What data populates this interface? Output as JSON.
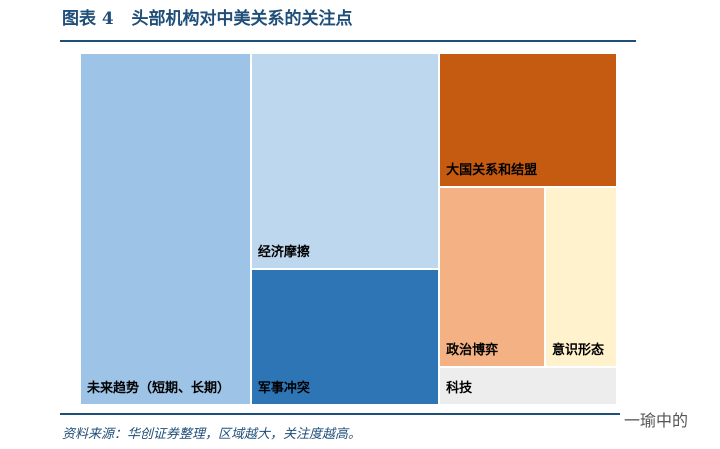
{
  "chart_data": {
    "type": "treemap",
    "title": "图表 4   头部机构对中美关系的关注点",
    "categories": [
      "未来趋势（短期、长期）",
      "经济摩擦",
      "军事冲突",
      "大国关系和结盟",
      "政治博弈",
      "意识形态",
      "科技"
    ],
    "values": [
      31.5,
      21.3,
      13.4,
      12.5,
      10,
      6.8,
      3.5
    ],
    "colors": [
      "#9dc3e6",
      "#bdd7ee",
      "#2e75b6",
      "#c55a11",
      "#f4b183",
      "#fff2cc",
      "#ededed"
    ],
    "source": "资料来源：华创证券整理，区域越大，关注度越高。",
    "watermark": "一瑜中的"
  }
}
